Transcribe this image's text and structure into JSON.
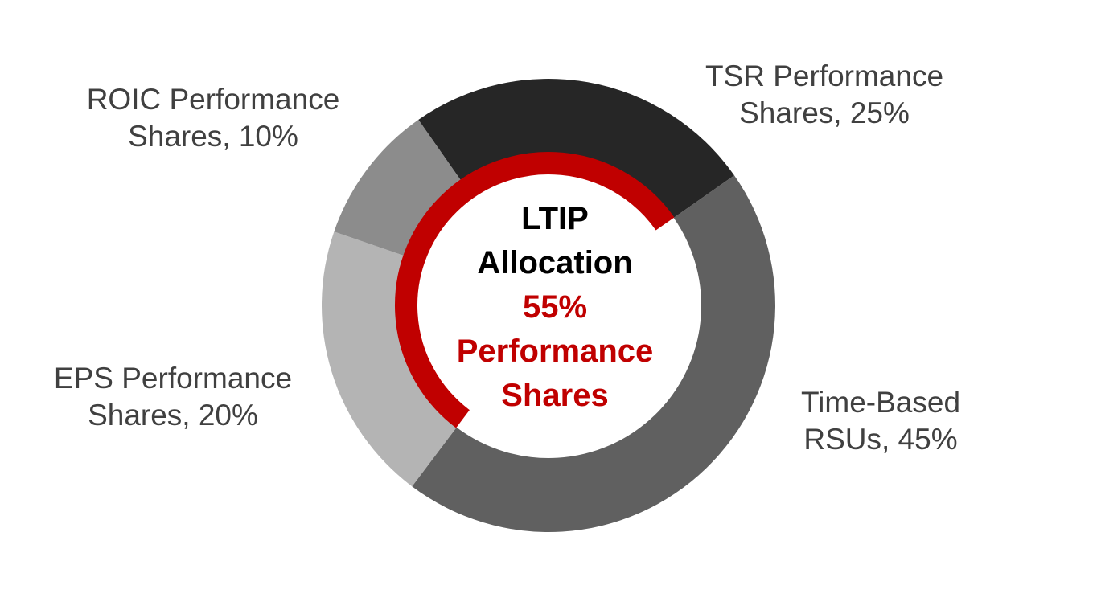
{
  "chart_data": {
    "type": "pie",
    "title": "",
    "donut": true,
    "categories": [
      "TSR Performance Shares",
      "Time-Based RSUs",
      "EPS Performance Shares",
      "ROIC Performance Shares"
    ],
    "values": [
      25,
      45,
      20,
      10
    ],
    "colors": [
      "#262626",
      "#606060",
      "#b4b4b4",
      "#8c8c8c"
    ],
    "labels": [
      {
        "line1": "TSR Performance",
        "line2": "Shares, 25%"
      },
      {
        "line1": "Time-Based",
        "line2": "RSUs, 45%"
      },
      {
        "line1": "EPS Performance",
        "line2": "Shares, 20%"
      },
      {
        "line1": "ROIC Performance",
        "line2": "Shares, 10%"
      }
    ],
    "highlight_arc": {
      "value": 55,
      "color": "#c00000"
    },
    "center": {
      "line1": "LTIP",
      "line2": "Allocation",
      "highlight_line1": "55%",
      "highlight_line2": "Performance",
      "highlight_line3": "Shares"
    }
  }
}
